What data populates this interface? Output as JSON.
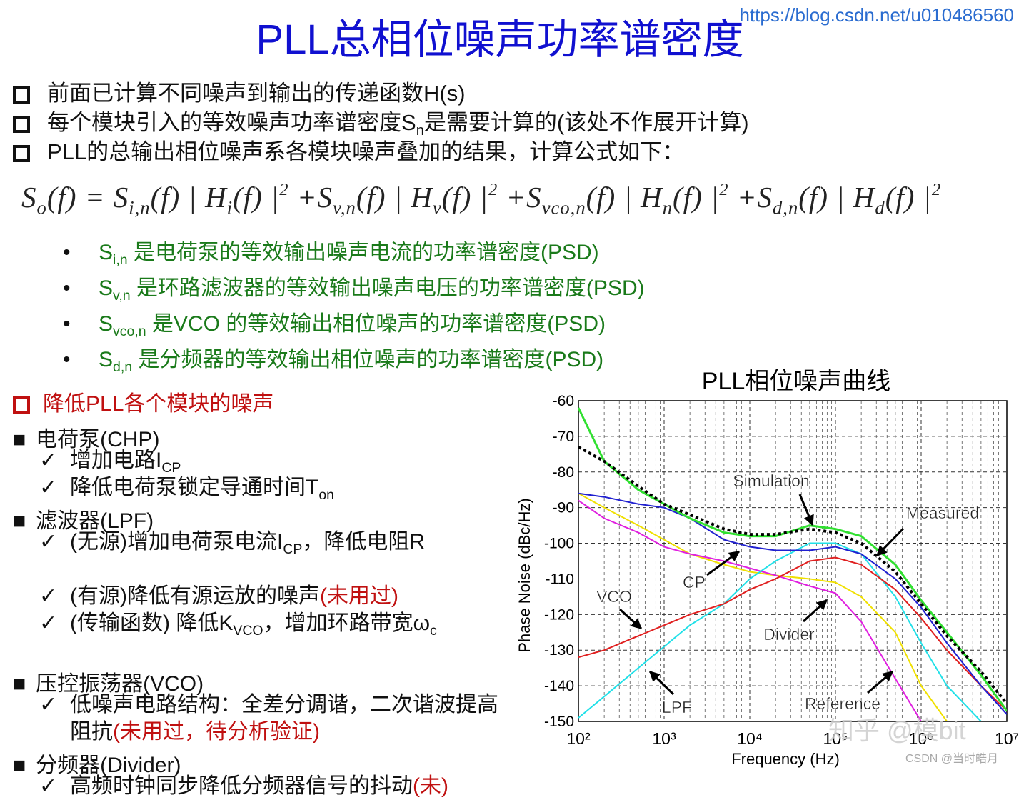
{
  "title": "PLL总相位噪声功率谱密度",
  "url": "https://blog.csdn.net/u010486560",
  "bullets": [
    [
      {
        "text": "前面已计算不同噪声到输出的传递函数H(s)"
      }
    ],
    [
      {
        "text": "每个模块引入的等效噪声功率谱密度S"
      },
      {
        "text": "n",
        "style": "sub"
      },
      {
        "text": "是需要计算的(该处不作展开计算)"
      }
    ],
    [
      {
        "text": "PLL的总输出相位噪声系各模块噪声叠加的结果，计算公式如下："
      }
    ]
  ],
  "formula": [
    {
      "text": "S"
    },
    {
      "text": "o",
      "style": "sub"
    },
    {
      "text": "(f) = S"
    },
    {
      "text": "i,n",
      "style": "sub"
    },
    {
      "text": "(f) | H"
    },
    {
      "text": "i",
      "style": "sub"
    },
    {
      "text": "(f) |"
    },
    {
      "text": "2",
      "style": "sup"
    },
    {
      "text": " +S"
    },
    {
      "text": "v,n",
      "style": "sub"
    },
    {
      "text": "(f) | H"
    },
    {
      "text": "v",
      "style": "sub"
    },
    {
      "text": "(f) |"
    },
    {
      "text": "2",
      "style": "sup"
    },
    {
      "text": " +S"
    },
    {
      "text": "vco,n",
      "style": "sub"
    },
    {
      "text": "(f) | H"
    },
    {
      "text": "n",
      "style": "sub"
    },
    {
      "text": "(f) |"
    },
    {
      "text": "2",
      "style": "sup"
    },
    {
      "text": " +S"
    },
    {
      "text": "d,n",
      "style": "sub"
    },
    {
      "text": "(f) | H"
    },
    {
      "text": "d",
      "style": "sub"
    },
    {
      "text": "(f) |"
    },
    {
      "text": "2",
      "style": "sup"
    }
  ],
  "definitions": [
    [
      {
        "text": "S"
      },
      {
        "text": "i,n",
        "style": "sub"
      },
      {
        "text": " 是电荷泵的等效输出噪声电流的功率谱密度(PSD)"
      }
    ],
    [
      {
        "text": "S"
      },
      {
        "text": "v,n",
        "style": "sub"
      },
      {
        "text": " 是环路滤波器的等效输出噪声电压的功率谱密度(PSD)"
      }
    ],
    [
      {
        "text": "S"
      },
      {
        "text": "vco,n",
        "style": "sub"
      },
      {
        "text": " 是VCO 的等效输出相位噪声的功率谱密度(PSD)"
      }
    ],
    [
      {
        "text": "S"
      },
      {
        "text": "d,n",
        "style": "sub"
      },
      {
        "text": " 是分频器的等效输出相位噪声的功率谱密度(PSD)"
      }
    ]
  ],
  "section": "降低PLL各个模块的噪声",
  "modules": [
    {
      "name": "电荷泵(CHP)",
      "items": [
        [
          {
            "text": "增加电路I"
          },
          {
            "text": "CP",
            "style": "sub"
          }
        ],
        [
          {
            "text": "降低电荷泵锁定导通时间T"
          },
          {
            "text": "on",
            "style": "sub"
          }
        ]
      ]
    },
    {
      "name": "滤波器(LPF)",
      "items": [
        [
          {
            "text": "(无源)增加电荷泵电流I"
          },
          {
            "text": "CP",
            "style": "sub"
          },
          {
            "text": "，降低电阻R"
          }
        ],
        [
          {
            "text": "(有源)降低有源运放的噪声"
          },
          {
            "text": "(未用过)",
            "style": "red"
          }
        ],
        [
          {
            "text": "(传输函数) 降低K"
          },
          {
            "text": "VCO",
            "style": "sub"
          },
          {
            "text": "，增加环路带宽ω"
          },
          {
            "text": "c",
            "style": "sub"
          }
        ]
      ]
    },
    {
      "name": "压控振荡器(VCO)",
      "items": [
        [
          {
            "text": "低噪声电路结构：全差分调谐，二次谐波提高阻抗"
          },
          {
            "text": "(未用过，待分析验证)",
            "style": "red"
          }
        ]
      ]
    },
    {
      "name": "分频器(Divider)",
      "items": [
        [
          {
            "text": "高频时钟同步降低分频器信号的抖动"
          },
          {
            "text": "(未)",
            "style": "red"
          }
        ]
      ]
    }
  ],
  "watermarks": [
    "知乎 @模bit",
    "CSDN @当时皓月"
  ],
  "chart_data": {
    "type": "line",
    "title": "PLL相位噪声曲线",
    "x_label": "Frequency (Hz)",
    "y_label": "Phase Noise (dBc/Hz)",
    "x_scale": "log",
    "grid": true,
    "x": [
      100,
      200,
      500,
      1000,
      2000,
      5000,
      10000,
      20000,
      50000,
      100000,
      200000,
      500000,
      1000000,
      2000000,
      5000000,
      10000000
    ],
    "xlim": [
      100,
      10000000
    ],
    "xticks": [
      {
        "value": 100,
        "label": "10²"
      },
      {
        "value": 1000,
        "label": "10³"
      },
      {
        "value": 10000,
        "label": "10⁴"
      },
      {
        "value": 100000,
        "label": "10⁵"
      },
      {
        "value": 1000000,
        "label": "10⁶"
      },
      {
        "value": 10000000,
        "label": "10⁷"
      }
    ],
    "ylim": [
      -150,
      -60
    ],
    "yticks": [
      -60,
      -70,
      -80,
      -90,
      -100,
      -110,
      -120,
      -130,
      -140,
      -150
    ],
    "series": [
      {
        "name": "Reference",
        "color": "#f0e000",
        "values": [
          -86,
          -90,
          -95,
          -99,
          -103,
          -106,
          -108,
          -109,
          -110,
          -111,
          -115,
          -125,
          -140,
          -150,
          null,
          null
        ]
      },
      {
        "name": "Divider",
        "color": "#e020e0",
        "values": [
          -88,
          -93,
          -97,
          -101,
          -103,
          -105,
          -107,
          -109,
          -112,
          -114,
          -122,
          -138,
          -150,
          null,
          null,
          null
        ]
      },
      {
        "name": "LPF",
        "color": "#20e0e8",
        "values": [
          -149,
          -143,
          -135,
          -129,
          -123,
          -117,
          -110,
          -105,
          -100,
          -100,
          -103,
          -115,
          -128,
          -140,
          -150,
          null
        ]
      },
      {
        "name": "VCO",
        "color": "#e02020",
        "values": [
          -132,
          -130,
          -126,
          -123,
          -120,
          -117,
          -113,
          -110,
          -105,
          -104,
          -106,
          -113,
          -121,
          -130,
          -140,
          -147
        ]
      },
      {
        "name": "CP",
        "color": "#2020d0",
        "values": [
          -86,
          -87,
          -89,
          -90,
          -93,
          -99,
          -101,
          -102,
          -102,
          -101,
          -103,
          -110,
          -118,
          -128,
          -140,
          -148
        ]
      },
      {
        "name": "Measured",
        "color": "#30e030",
        "values": [
          -62,
          -77,
          -85,
          -89,
          -93,
          -97,
          -98,
          -98,
          -95,
          -96,
          -98,
          -106,
          -116,
          -125,
          -137,
          -147
        ]
      },
      {
        "name": "Simulation",
        "color": "#000000",
        "values": [
          -73,
          -77,
          -84,
          -89,
          -92,
          -96,
          -97.5,
          -97.5,
          -96,
          -97,
          -100,
          -108,
          -117,
          -126,
          -136,
          -145
        ]
      }
    ]
  }
}
